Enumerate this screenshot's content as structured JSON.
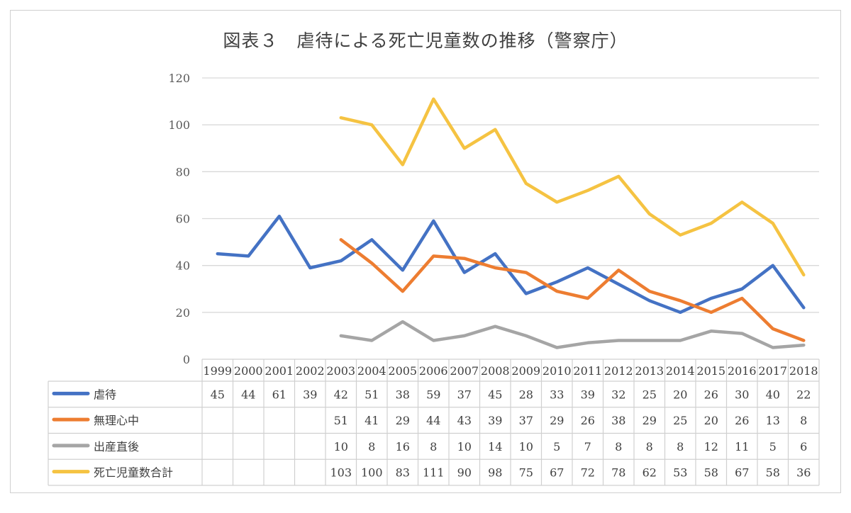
{
  "chart_data": {
    "type": "line",
    "title": "図表３　虐待による死亡児童数の推移（警察庁）",
    "categories": [
      "1999",
      "2000",
      "2001",
      "2002",
      "2003",
      "2004",
      "2005",
      "2006",
      "2007",
      "2008",
      "2009",
      "2010",
      "2011",
      "2012",
      "2013",
      "2014",
      "2015",
      "2016",
      "2017",
      "2018"
    ],
    "ylim": [
      0,
      120
    ],
    "yticks": [
      0,
      20,
      40,
      60,
      80,
      100,
      120
    ],
    "grid": true,
    "legend": "data-table-left",
    "series": [
      {
        "name": "虐待",
        "color": "#4472C4",
        "values": [
          45,
          44,
          61,
          39,
          42,
          51,
          38,
          59,
          37,
          45,
          28,
          33,
          39,
          32,
          25,
          20,
          26,
          30,
          40,
          22
        ]
      },
      {
        "name": "無理心中",
        "color": "#ED7D31",
        "values": [
          null,
          null,
          null,
          null,
          51,
          41,
          29,
          44,
          43,
          39,
          37,
          29,
          26,
          38,
          29,
          25,
          20,
          26,
          13,
          8
        ]
      },
      {
        "name": "出産直後",
        "color": "#A5A5A5",
        "values": [
          null,
          null,
          null,
          null,
          10,
          8,
          16,
          8,
          10,
          14,
          10,
          5,
          7,
          8,
          8,
          8,
          12,
          11,
          5,
          6
        ]
      },
      {
        "name": "死亡児童数合計",
        "color": "#F5C342",
        "values": [
          null,
          null,
          null,
          null,
          103,
          100,
          83,
          111,
          90,
          98,
          75,
          67,
          72,
          78,
          62,
          53,
          58,
          67,
          58,
          36
        ]
      }
    ]
  }
}
